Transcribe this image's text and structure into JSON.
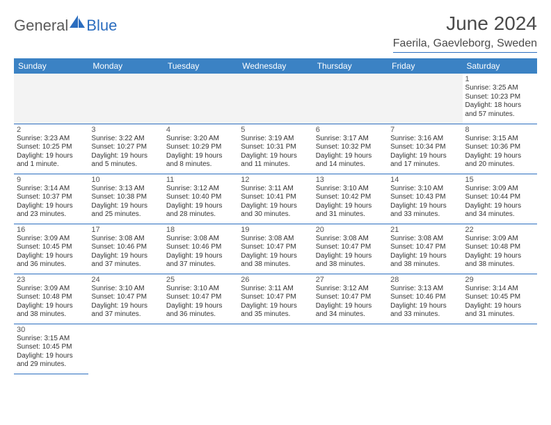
{
  "brand": {
    "general": "General",
    "blue": "Blue"
  },
  "title": "June 2024",
  "location": "Faerila, Gaevleborg, Sweden",
  "colors": {
    "header_bg": "#3b82c4",
    "header_fg": "#ffffff",
    "rule": "#2b6dbf",
    "text": "#333333",
    "logo_gray": "#5a5a5a",
    "logo_blue": "#2b6dbf",
    "empty_bg": "#f3f3f3"
  },
  "day_headers": [
    "Sunday",
    "Monday",
    "Tuesday",
    "Wednesday",
    "Thursday",
    "Friday",
    "Saturday"
  ],
  "weeks": [
    [
      null,
      null,
      null,
      null,
      null,
      null,
      {
        "n": "1",
        "sr": "Sunrise: 3:25 AM",
        "ss": "Sunset: 10:23 PM",
        "dl1": "Daylight: 18 hours",
        "dl2": "and 57 minutes."
      }
    ],
    [
      {
        "n": "2",
        "sr": "Sunrise: 3:23 AM",
        "ss": "Sunset: 10:25 PM",
        "dl1": "Daylight: 19 hours",
        "dl2": "and 1 minute."
      },
      {
        "n": "3",
        "sr": "Sunrise: 3:22 AM",
        "ss": "Sunset: 10:27 PM",
        "dl1": "Daylight: 19 hours",
        "dl2": "and 5 minutes."
      },
      {
        "n": "4",
        "sr": "Sunrise: 3:20 AM",
        "ss": "Sunset: 10:29 PM",
        "dl1": "Daylight: 19 hours",
        "dl2": "and 8 minutes."
      },
      {
        "n": "5",
        "sr": "Sunrise: 3:19 AM",
        "ss": "Sunset: 10:31 PM",
        "dl1": "Daylight: 19 hours",
        "dl2": "and 11 minutes."
      },
      {
        "n": "6",
        "sr": "Sunrise: 3:17 AM",
        "ss": "Sunset: 10:32 PM",
        "dl1": "Daylight: 19 hours",
        "dl2": "and 14 minutes."
      },
      {
        "n": "7",
        "sr": "Sunrise: 3:16 AM",
        "ss": "Sunset: 10:34 PM",
        "dl1": "Daylight: 19 hours",
        "dl2": "and 17 minutes."
      },
      {
        "n": "8",
        "sr": "Sunrise: 3:15 AM",
        "ss": "Sunset: 10:36 PM",
        "dl1": "Daylight: 19 hours",
        "dl2": "and 20 minutes."
      }
    ],
    [
      {
        "n": "9",
        "sr": "Sunrise: 3:14 AM",
        "ss": "Sunset: 10:37 PM",
        "dl1": "Daylight: 19 hours",
        "dl2": "and 23 minutes."
      },
      {
        "n": "10",
        "sr": "Sunrise: 3:13 AM",
        "ss": "Sunset: 10:38 PM",
        "dl1": "Daylight: 19 hours",
        "dl2": "and 25 minutes."
      },
      {
        "n": "11",
        "sr": "Sunrise: 3:12 AM",
        "ss": "Sunset: 10:40 PM",
        "dl1": "Daylight: 19 hours",
        "dl2": "and 28 minutes."
      },
      {
        "n": "12",
        "sr": "Sunrise: 3:11 AM",
        "ss": "Sunset: 10:41 PM",
        "dl1": "Daylight: 19 hours",
        "dl2": "and 30 minutes."
      },
      {
        "n": "13",
        "sr": "Sunrise: 3:10 AM",
        "ss": "Sunset: 10:42 PM",
        "dl1": "Daylight: 19 hours",
        "dl2": "and 31 minutes."
      },
      {
        "n": "14",
        "sr": "Sunrise: 3:10 AM",
        "ss": "Sunset: 10:43 PM",
        "dl1": "Daylight: 19 hours",
        "dl2": "and 33 minutes."
      },
      {
        "n": "15",
        "sr": "Sunrise: 3:09 AM",
        "ss": "Sunset: 10:44 PM",
        "dl1": "Daylight: 19 hours",
        "dl2": "and 34 minutes."
      }
    ],
    [
      {
        "n": "16",
        "sr": "Sunrise: 3:09 AM",
        "ss": "Sunset: 10:45 PM",
        "dl1": "Daylight: 19 hours",
        "dl2": "and 36 minutes."
      },
      {
        "n": "17",
        "sr": "Sunrise: 3:08 AM",
        "ss": "Sunset: 10:46 PM",
        "dl1": "Daylight: 19 hours",
        "dl2": "and 37 minutes."
      },
      {
        "n": "18",
        "sr": "Sunrise: 3:08 AM",
        "ss": "Sunset: 10:46 PM",
        "dl1": "Daylight: 19 hours",
        "dl2": "and 37 minutes."
      },
      {
        "n": "19",
        "sr": "Sunrise: 3:08 AM",
        "ss": "Sunset: 10:47 PM",
        "dl1": "Daylight: 19 hours",
        "dl2": "and 38 minutes."
      },
      {
        "n": "20",
        "sr": "Sunrise: 3:08 AM",
        "ss": "Sunset: 10:47 PM",
        "dl1": "Daylight: 19 hours",
        "dl2": "and 38 minutes."
      },
      {
        "n": "21",
        "sr": "Sunrise: 3:08 AM",
        "ss": "Sunset: 10:47 PM",
        "dl1": "Daylight: 19 hours",
        "dl2": "and 38 minutes."
      },
      {
        "n": "22",
        "sr": "Sunrise: 3:09 AM",
        "ss": "Sunset: 10:48 PM",
        "dl1": "Daylight: 19 hours",
        "dl2": "and 38 minutes."
      }
    ],
    [
      {
        "n": "23",
        "sr": "Sunrise: 3:09 AM",
        "ss": "Sunset: 10:48 PM",
        "dl1": "Daylight: 19 hours",
        "dl2": "and 38 minutes."
      },
      {
        "n": "24",
        "sr": "Sunrise: 3:10 AM",
        "ss": "Sunset: 10:47 PM",
        "dl1": "Daylight: 19 hours",
        "dl2": "and 37 minutes."
      },
      {
        "n": "25",
        "sr": "Sunrise: 3:10 AM",
        "ss": "Sunset: 10:47 PM",
        "dl1": "Daylight: 19 hours",
        "dl2": "and 36 minutes."
      },
      {
        "n": "26",
        "sr": "Sunrise: 3:11 AM",
        "ss": "Sunset: 10:47 PM",
        "dl1": "Daylight: 19 hours",
        "dl2": "and 35 minutes."
      },
      {
        "n": "27",
        "sr": "Sunrise: 3:12 AM",
        "ss": "Sunset: 10:47 PM",
        "dl1": "Daylight: 19 hours",
        "dl2": "and 34 minutes."
      },
      {
        "n": "28",
        "sr": "Sunrise: 3:13 AM",
        "ss": "Sunset: 10:46 PM",
        "dl1": "Daylight: 19 hours",
        "dl2": "and 33 minutes."
      },
      {
        "n": "29",
        "sr": "Sunrise: 3:14 AM",
        "ss": "Sunset: 10:45 PM",
        "dl1": "Daylight: 19 hours",
        "dl2": "and 31 minutes."
      }
    ],
    [
      {
        "n": "30",
        "sr": "Sunrise: 3:15 AM",
        "ss": "Sunset: 10:45 PM",
        "dl1": "Daylight: 19 hours",
        "dl2": "and 29 minutes."
      },
      null,
      null,
      null,
      null,
      null,
      null
    ]
  ]
}
